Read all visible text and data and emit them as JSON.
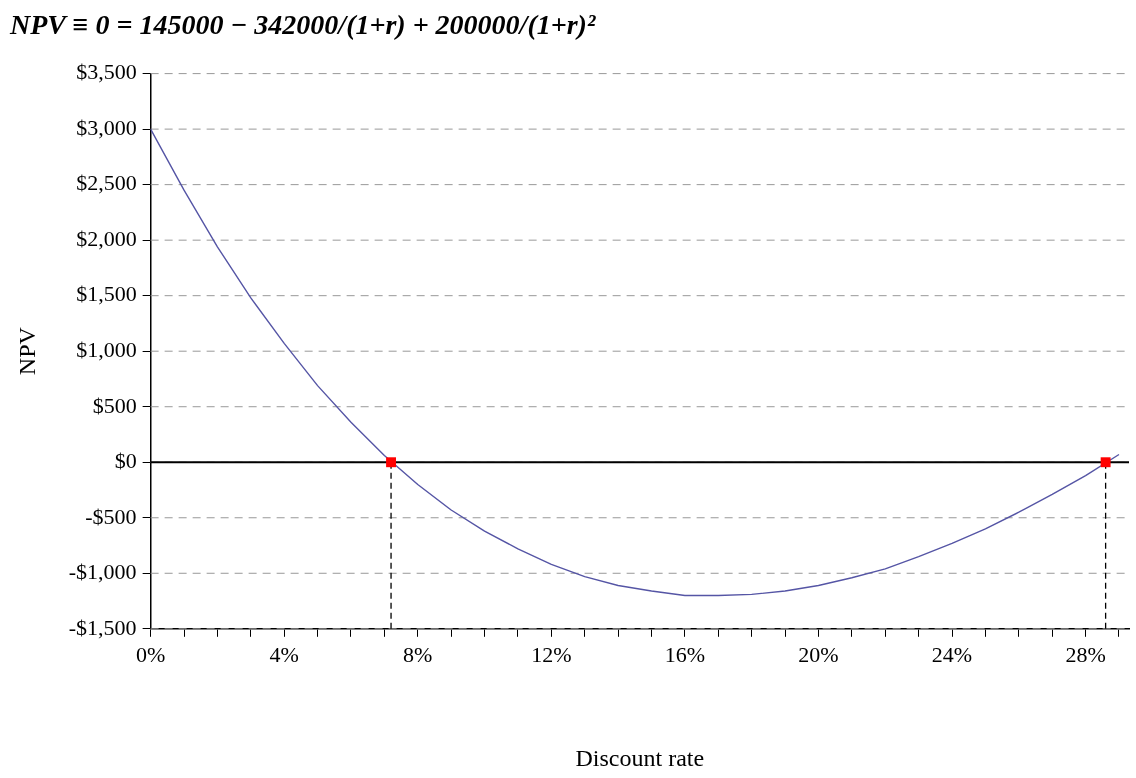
{
  "chart_data": {
    "type": "line",
    "title": "NPV ≡ 0 = 145000 − 342000/(1+r) + 200000/(1+r)²",
    "xlabel": "Discount rate",
    "ylabel": "NPV",
    "x": [
      0,
      1,
      2,
      3,
      4,
      5,
      6,
      7,
      8,
      9,
      10,
      11,
      12,
      13,
      14,
      15,
      16,
      17,
      18,
      19,
      20,
      21,
      22,
      23,
      24,
      25,
      26,
      27,
      28,
      29
    ],
    "series": [
      {
        "color": "#5555a5",
        "values": [
          3000,
          2450,
          1940,
          1480,
          1070,
          690,
          360,
          60,
          -200,
          -430,
          -620,
          -780,
          -920,
          -1030,
          -1110,
          -1160,
          -1200,
          -1200,
          -1190,
          -1160,
          -1110,
          -1040,
          -960,
          -850,
          -730,
          -600,
          -450,
          -290,
          -120,
          70
        ]
      },
      {
        "type": "scatter",
        "marker": "square",
        "color": "#ff0000",
        "x": [
          7.2,
          28.6
        ],
        "values": [
          0,
          0
        ]
      }
    ],
    "xlim": [
      0,
      29.3
    ],
    "xticks": [
      {
        "value": 0,
        "label": "0%"
      },
      {
        "value": 1,
        "label": null
      },
      {
        "value": 2,
        "label": null
      },
      {
        "value": 3,
        "label": null
      },
      {
        "value": 4,
        "label": "4%"
      },
      {
        "value": 5,
        "label": null
      },
      {
        "value": 6,
        "label": null
      },
      {
        "value": 7,
        "label": null
      },
      {
        "value": 8,
        "label": "8%"
      },
      {
        "value": 9,
        "label": null
      },
      {
        "value": 10,
        "label": null
      },
      {
        "value": 11,
        "label": null
      },
      {
        "value": 12,
        "label": "12%"
      },
      {
        "value": 13,
        "label": null
      },
      {
        "value": 14,
        "label": null
      },
      {
        "value": 15,
        "label": null
      },
      {
        "value": 16,
        "label": "16%"
      },
      {
        "value": 17,
        "label": null
      },
      {
        "value": 18,
        "label": null
      },
      {
        "value": 19,
        "label": null
      },
      {
        "value": 20,
        "label": "20%"
      },
      {
        "value": 21,
        "label": null
      },
      {
        "value": 22,
        "label": null
      },
      {
        "value": 23,
        "label": null
      },
      {
        "value": 24,
        "label": "24%"
      },
      {
        "value": 25,
        "label": null
      },
      {
        "value": 26,
        "label": null
      },
      {
        "value": 27,
        "label": null
      },
      {
        "value": 28,
        "label": "28%"
      },
      {
        "value": 29,
        "label": null
      }
    ],
    "ylim": [
      -1500,
      3500
    ],
    "yticks": [
      {
        "value": -1500,
        "label": "-$1,500"
      },
      {
        "value": -1000,
        "label": "-$1,000"
      },
      {
        "value": -500,
        "label": "-$500"
      },
      {
        "value": 0,
        "label": "$0"
      },
      {
        "value": 500,
        "label": "$500"
      },
      {
        "value": 1000,
        "label": "$1,000"
      },
      {
        "value": 1500,
        "label": "$1,500"
      },
      {
        "value": 2000,
        "label": "$2,000"
      },
      {
        "value": 2500,
        "label": "$2,500"
      },
      {
        "value": 3000,
        "label": "$3,000"
      },
      {
        "value": 3500,
        "label": "$3,500"
      }
    ],
    "grid": "y",
    "ref_lines": [
      {
        "axis": "y",
        "value": 0,
        "color": "#000000",
        "line_style": "solid"
      },
      {
        "axis": "x",
        "value": 7.2,
        "color": "#000000",
        "line_style": "dashed"
      },
      {
        "axis": "x",
        "value": 28.6,
        "color": "#000000",
        "line_style": "dashed"
      }
    ]
  }
}
